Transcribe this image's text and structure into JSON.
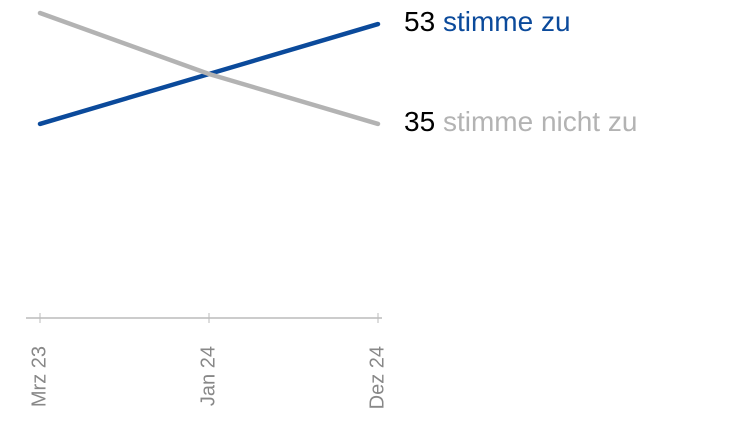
{
  "chart_data": {
    "type": "line",
    "categories": [
      "Mrz 23",
      "Jan 24",
      "Dez 24"
    ],
    "series": [
      {
        "name": "stimme zu",
        "color": "#0b4a9b",
        "values": [
          35,
          44,
          53
        ]
      },
      {
        "name": "stimme nicht zu",
        "color": "#b3b3b3",
        "values": [
          55,
          44,
          35
        ]
      }
    ],
    "ylim": [
      0,
      55
    ]
  }
}
